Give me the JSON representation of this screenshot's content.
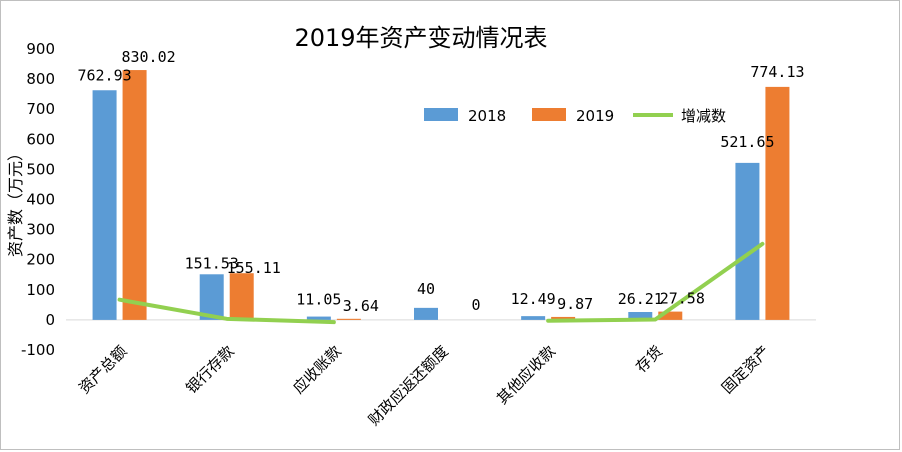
{
  "chart_data": {
    "type": "bar",
    "title": "2019年资产变动情况表",
    "ylabel": "资产数（万元）",
    "xlabel": "",
    "ylim": [
      -100,
      900
    ],
    "yticks": [
      -100,
      0,
      100,
      200,
      300,
      400,
      500,
      600,
      700,
      800,
      900
    ],
    "categories": [
      "资产总额",
      "银行存款",
      "应收账款",
      "财政应返还额度",
      "其他应收款",
      "存货",
      "固定资产"
    ],
    "series": [
      {
        "name": "2018",
        "kind": "bar",
        "color": "#5b9bd5",
        "values": [
          762.93,
          151.53,
          11.05,
          40,
          12.49,
          26.21,
          521.65
        ],
        "labels": [
          "762.93",
          "151.53",
          "11.05",
          "40",
          "12.49",
          "26.21",
          "521.65"
        ]
      },
      {
        "name": "2019",
        "kind": "bar",
        "color": "#ed7d31",
        "values": [
          830.02,
          155.11,
          3.64,
          0,
          9.87,
          27.58,
          774.13
        ],
        "labels": [
          "830.02",
          "155.11",
          "3.64",
          "0",
          "9.87",
          "27.58",
          "774.13"
        ]
      },
      {
        "name": "增减数",
        "kind": "line",
        "color": "#92d050",
        "values": [
          67.09,
          3.58,
          -7.41,
          null,
          -2.62,
          1.37,
          252.48
        ]
      }
    ],
    "legend": [
      "2018",
      "2019",
      "增减数"
    ],
    "legend_position": "top-right"
  }
}
